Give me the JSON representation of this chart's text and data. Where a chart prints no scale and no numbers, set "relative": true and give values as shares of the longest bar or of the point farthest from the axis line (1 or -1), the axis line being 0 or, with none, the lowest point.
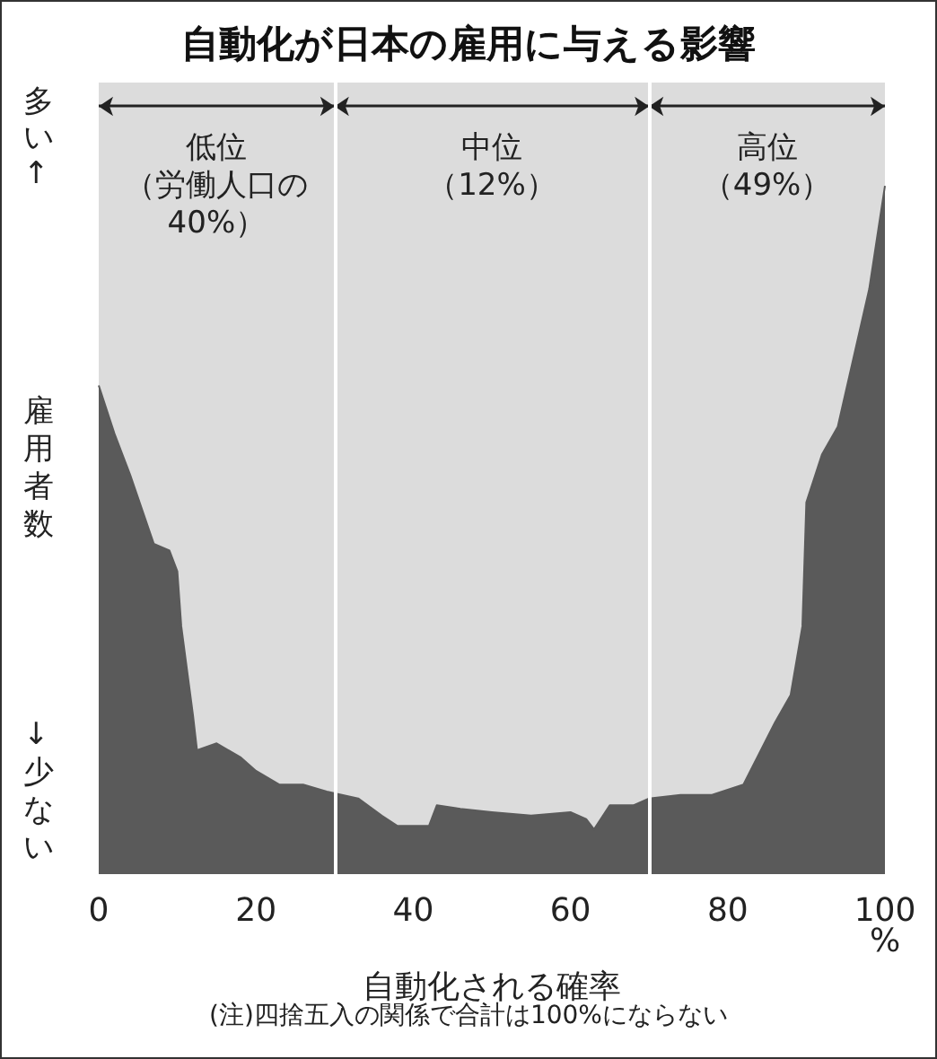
{
  "chart_data": {
    "type": "area",
    "title": "自動化が日本の雇用に与える影響",
    "xlabel": "自動化される確率",
    "ylabel": "雇用者数",
    "relative": true,
    "x": [
      0,
      2,
      4,
      7,
      9,
      10,
      10.5,
      12,
      12.5,
      15,
      18,
      20,
      23,
      26,
      29,
      33,
      36,
      38,
      40,
      42,
      43,
      46,
      50,
      55,
      60,
      62,
      63,
      65,
      68,
      70,
      74,
      78,
      82,
      84,
      86,
      88,
      89.5,
      90,
      92,
      94,
      96,
      98,
      100
    ],
    "series": [
      {
        "color": "#5a5a5a",
        "values": [
          0.71,
          0.64,
          0.58,
          0.48,
          0.47,
          0.44,
          0.36,
          0.23,
          0.18,
          0.19,
          0.17,
          0.15,
          0.13,
          0.13,
          0.12,
          0.11,
          0.085,
          0.07,
          0.07,
          0.07,
          0.1,
          0.095,
          0.09,
          0.085,
          0.09,
          0.08,
          0.065,
          0.1,
          0.1,
          0.11,
          0.115,
          0.115,
          0.13,
          0.175,
          0.22,
          0.26,
          0.36,
          0.54,
          0.61,
          0.65,
          0.75,
          0.85,
          1
        ]
      }
    ],
    "xlim": [
      0,
      100
    ],
    "xticks": [
      0,
      20,
      40,
      60,
      80,
      {
        "value": 100,
        "label": "100\n%"
      }
    ],
    "bands": [
      {
        "axis": "x",
        "from": 0,
        "to": 30,
        "label": "低位（労働人口の40%）",
        "color": "#dcdcdc"
      },
      {
        "axis": "x",
        "from": 30,
        "to": 70,
        "label": "中位（12%）",
        "color": "#dcdcdc"
      },
      {
        "axis": "x",
        "from": 70,
        "to": 100,
        "label": "高位（49%）",
        "color": "#dcdcdc"
      }
    ],
    "ref_lines": [
      {
        "axis": "x",
        "value": 30,
        "color": "#ffffff"
      },
      {
        "axis": "x",
        "value": 70,
        "color": "#ffffff"
      }
    ],
    "annotations": [
      "多い↑",
      "↓少ない",
      "(注)四捨五入の関係で合計は100%にならない"
    ],
    "grid": false
  }
}
